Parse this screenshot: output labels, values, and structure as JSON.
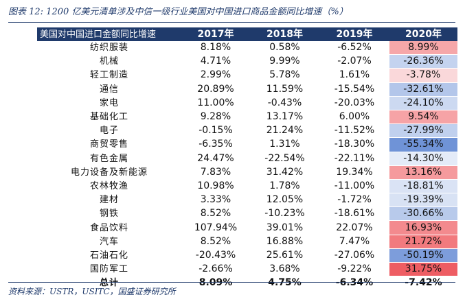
{
  "caption": "图表 12:  1200 亿美元清单涉及中信一级行业美国对中国进口商品金额同比增速（%）",
  "source": "资料来源：USTR，USITC，国盛证券研究所",
  "table": {
    "header": [
      "美国对中国进口金额同比增速",
      "2017年",
      "2018年",
      "2019年",
      "2020年"
    ],
    "rows": [
      {
        "name": "纺织服装",
        "y2017": "8.18%",
        "y2018": "0.58%",
        "y2019": "-6.52%",
        "y2020": "8.99%",
        "color2020": "#f6a7a9"
      },
      {
        "name": "机械",
        "y2017": "4.71%",
        "y2018": "9.99%",
        "y2019": "-2.07%",
        "y2020": "-26.36%",
        "color2020": "#c4d3ef"
      },
      {
        "name": "轻工制造",
        "y2017": "2.99%",
        "y2018": "5.78%",
        "y2019": "1.61%",
        "y2020": "-3.78%",
        "color2020": "#fad8da"
      },
      {
        "name": "通信",
        "y2017": "20.89%",
        "y2018": "11.59%",
        "y2019": "-15.54%",
        "y2020": "-32.61%",
        "color2020": "#b3c6ea"
      },
      {
        "name": "家电",
        "y2017": "11.00%",
        "y2018": "-0.43%",
        "y2019": "-20.03%",
        "y2020": "-24.10%",
        "color2020": "#ccd9f1"
      },
      {
        "name": "基础化工",
        "y2017": "9.28%",
        "y2018": "13.17%",
        "y2019": "6.00%",
        "y2020": "9.54%",
        "color2020": "#f6a3a6"
      },
      {
        "name": "电子",
        "y2017": "-0.15%",
        "y2018": "21.24%",
        "y2019": "-11.52%",
        "y2020": "-27.99%",
        "color2020": "#c0d0ee"
      },
      {
        "name": "商贸零售",
        "y2017": "-6.35%",
        "y2018": "1.31%",
        "y2019": "-18.30%",
        "y2020": "-55.34%",
        "color2020": "#6f93d7"
      },
      {
        "name": "有色金属",
        "y2017": "24.47%",
        "y2018": "-22.54%",
        "y2019": "-22.11%",
        "y2020": "-14.30%",
        "color2020": "#e4ebf8"
      },
      {
        "name": "电力设备及新能源",
        "y2017": "7.83%",
        "y2018": "31.42%",
        "y2019": "19.34%",
        "y2020": "13.16%",
        "color2020": "#f59a9d"
      },
      {
        "name": "农林牧渔",
        "y2017": "10.98%",
        "y2018": "1.78%",
        "y2019": "-11.00%",
        "y2020": "-18.81%",
        "color2020": "#dae3f5"
      },
      {
        "name": "建材",
        "y2017": "3.33%",
        "y2018": "12.05%",
        "y2019": "-1.72%",
        "y2020": "-19.39%",
        "color2020": "#d8e2f4"
      },
      {
        "name": "钢铁",
        "y2017": "8.52%",
        "y2018": "-10.23%",
        "y2019": "-18.61%",
        "y2020": "-30.66%",
        "color2020": "#b8caeb"
      },
      {
        "name": "食品饮料",
        "y2017": "107.94%",
        "y2018": "39.01%",
        "y2019": "22.07%",
        "y2020": "16.93%",
        "color2020": "#f38a8e"
      },
      {
        "name": "汽车",
        "y2017": "8.52%",
        "y2018": "16.88%",
        "y2019": "7.47%",
        "y2020": "21.72%",
        "color2020": "#f27a7e"
      },
      {
        "name": "石油石化",
        "y2017": "-20.43%",
        "y2018": "25.61%",
        "y2019": "-27.06%",
        "y2020": "-50.19%",
        "color2020": "#7d9ddb"
      },
      {
        "name": "国防军工",
        "y2017": "-2.66%",
        "y2018": "3.68%",
        "y2019": "-9.22%",
        "y2020": "31.75%",
        "color2020": "#ee5d63"
      }
    ],
    "total": {
      "name": "总计",
      "y2017": "8.09%",
      "y2018": "4.75%",
      "y2019": "-6.34%",
      "y2020": "-7.42%"
    }
  }
}
